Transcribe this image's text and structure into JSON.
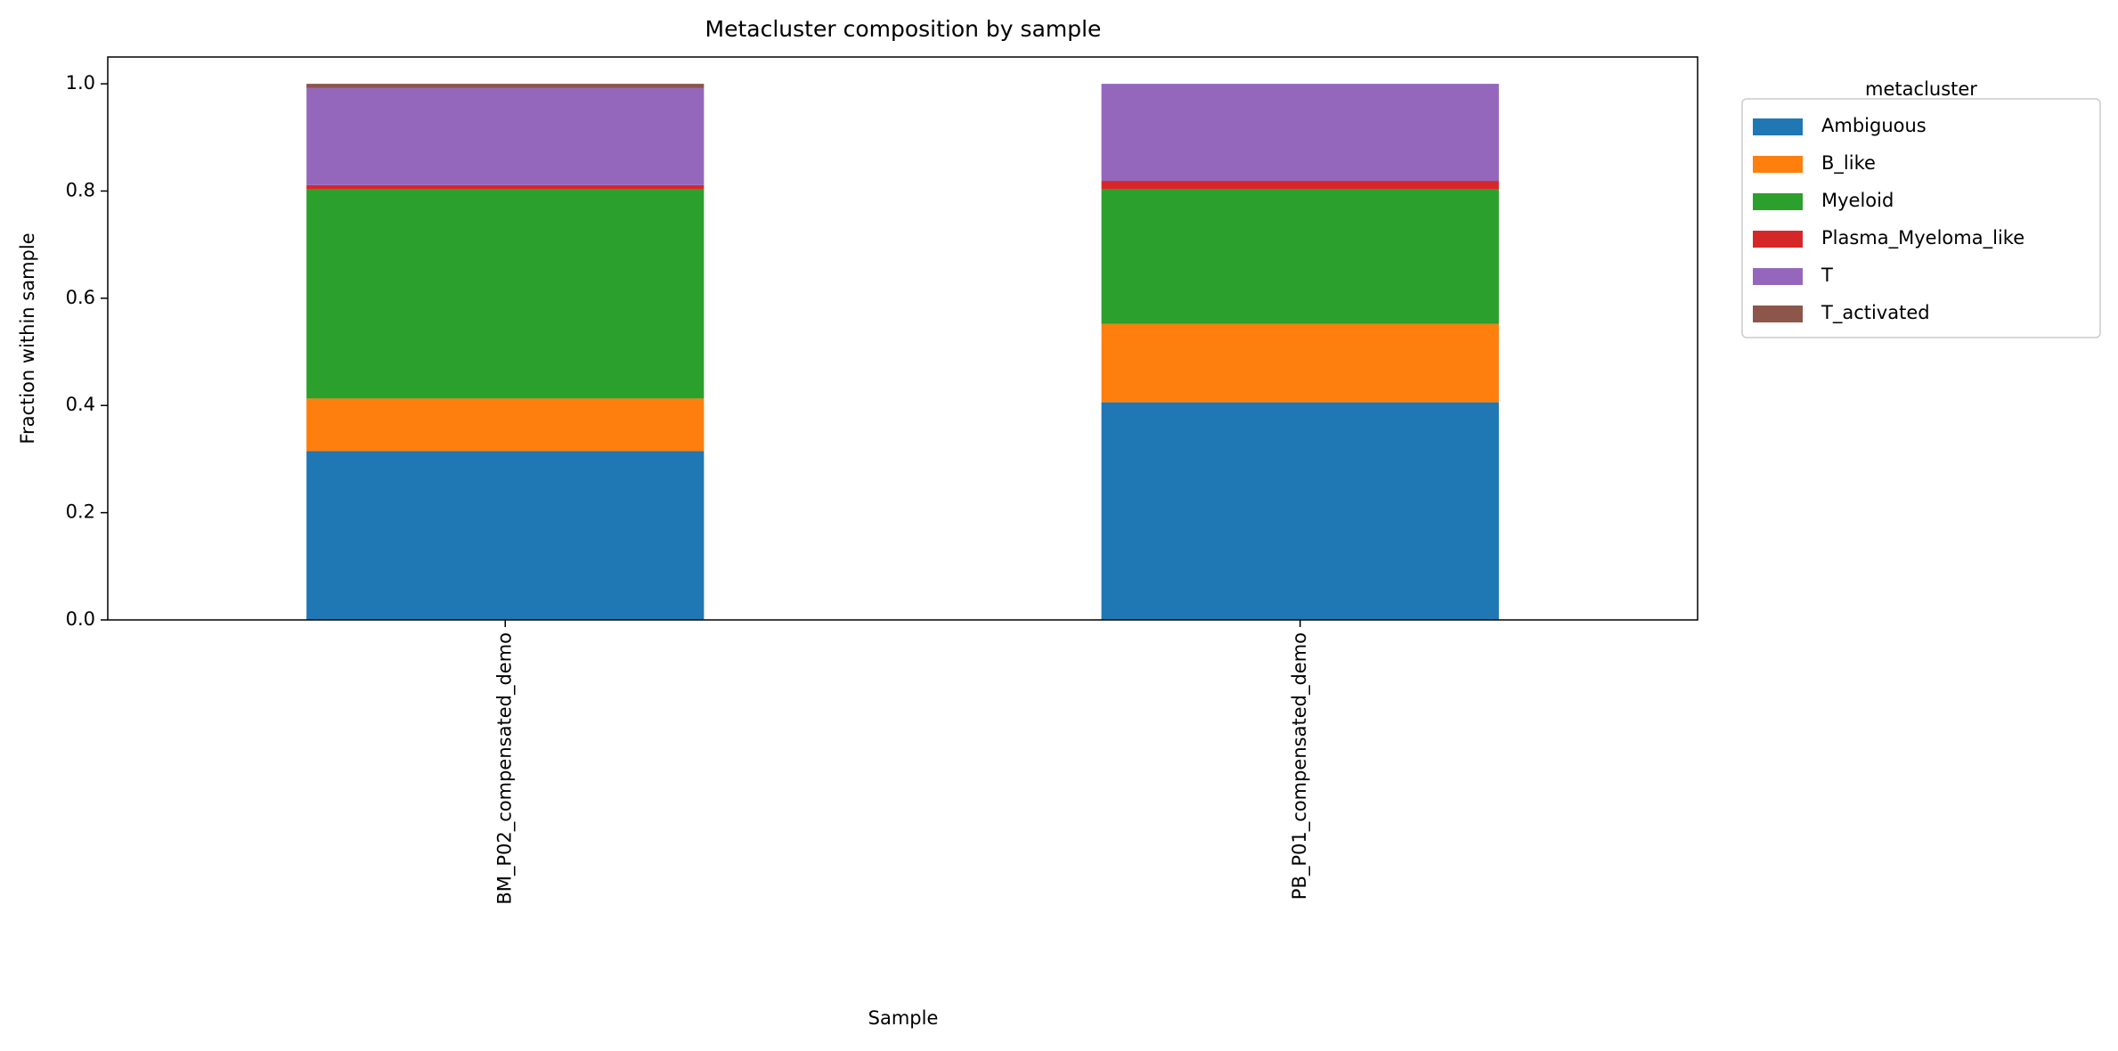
{
  "chart_data": {
    "type": "stacked_bar",
    "title": "Metacluster composition by sample",
    "x_label": "Sample",
    "y_label": "Fraction within sample",
    "categories": [
      "BM_P02_compensated_demo",
      "PB_P01_compensated_demo"
    ],
    "series": [
      {
        "name": "Ambiguous",
        "color": "#1f77b4",
        "values": [
          0.315,
          0.406
        ]
      },
      {
        "name": "B_like",
        "color": "#ff7f0e",
        "values": [
          0.098,
          0.146
        ]
      },
      {
        "name": "Myeloid",
        "color": "#2ca02c",
        "values": [
          0.39,
          0.251
        ]
      },
      {
        "name": "Plasma_Myeloma_like",
        "color": "#d62728",
        "values": [
          0.008,
          0.016
        ]
      },
      {
        "name": "T",
        "color": "#9467bd",
        "values": [
          0.181,
          0.181
        ]
      },
      {
        "name": "T_activated",
        "color": "#8c564b",
        "values": [
          0.008,
          0
        ]
      }
    ],
    "legend_title": "metacluster",
    "legend_position": "outside-upper-right",
    "ylim": [
      0,
      1.05
    ],
    "yticks": [
      {
        "value": 0,
        "label": "0.0"
      },
      0.2,
      0.4,
      0.6,
      0.8,
      {
        "value": 1,
        "label": "1.0"
      }
    ]
  }
}
